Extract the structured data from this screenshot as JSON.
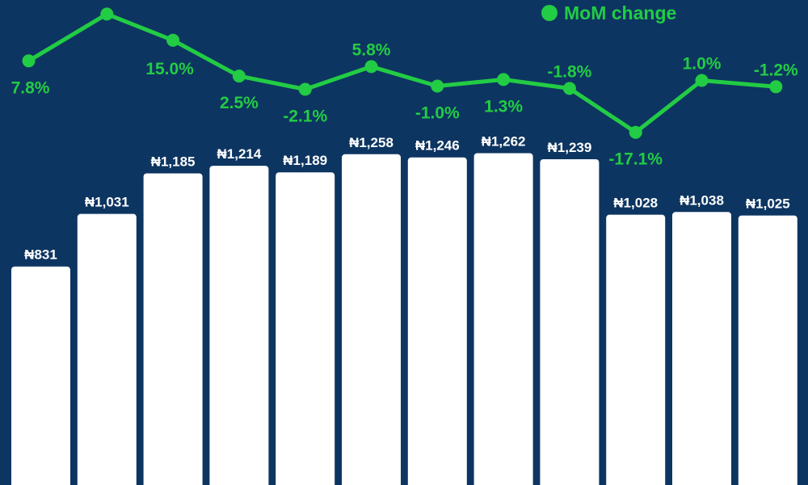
{
  "colors": {
    "background": "#0d3561",
    "bar": "#ffffff",
    "bar_label": "#ffffff",
    "line": "#22cc44"
  },
  "chart_data": {
    "type": "bar+line",
    "legend": {
      "label": "MoM change",
      "placement": "top-right"
    },
    "bars": {
      "values": [
        831,
        1031,
        1185,
        1214,
        1189,
        1258,
        1246,
        1262,
        1239,
        1028,
        1038,
        1025
      ],
      "labels": [
        "₦831",
        "₦1,031",
        "₦1,185",
        "₦1,214",
        "₦1,189",
        "₦1,258",
        "₦1,246",
        "₦1,262",
        "₦1,239",
        "₦1,028",
        "₦1,038",
        "₦1,025"
      ]
    },
    "series": [
      {
        "name": "MoM change",
        "values": [
          7.8,
          24.1,
          15.0,
          2.5,
          -2.1,
          5.8,
          -1.0,
          1.3,
          -1.8,
          -17.1,
          1.0,
          -1.2
        ],
        "labels": [
          "7.8%",
          "",
          "15.0%",
          "2.5%",
          "-2.1%",
          "5.8%",
          "-1.0%",
          "1.3%",
          "-1.8%",
          "-17.1%",
          "1.0%",
          "-1.2%"
        ]
      }
    ],
    "grid": false
  }
}
